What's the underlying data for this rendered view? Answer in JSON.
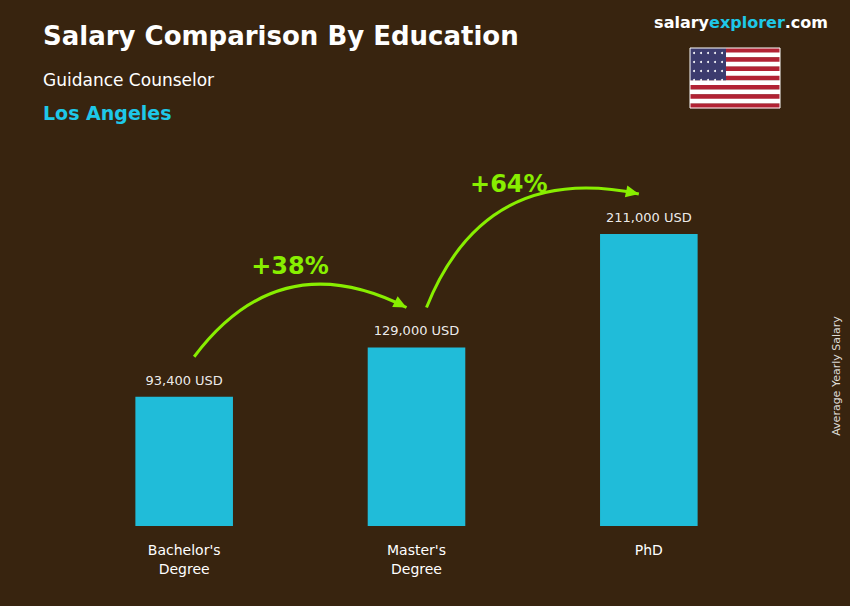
{
  "chart_data": {
    "type": "bar",
    "title": "Salary Comparison By Education",
    "subtitle": [
      "Guidance Counselor",
      "Los Angeles"
    ],
    "ylabel": "Average Yearly Salary",
    "brand": [
      "salary",
      "explorer",
      ".com"
    ],
    "annotations": [
      "+38%",
      "+64%"
    ],
    "categories": [
      "Bachelor's\nDegree",
      "Master's\nDegree",
      "PhD"
    ],
    "values": [
      93400,
      129000,
      211000
    ],
    "value_labels": [
      "93,400 USD",
      "129,000 USD",
      "211,000 USD"
    ],
    "color": "#1ec8e8",
    "ylim": [
      0,
      250000
    ],
    "data_labels": true,
    "tick_labels": "x",
    "grid": false
  }
}
